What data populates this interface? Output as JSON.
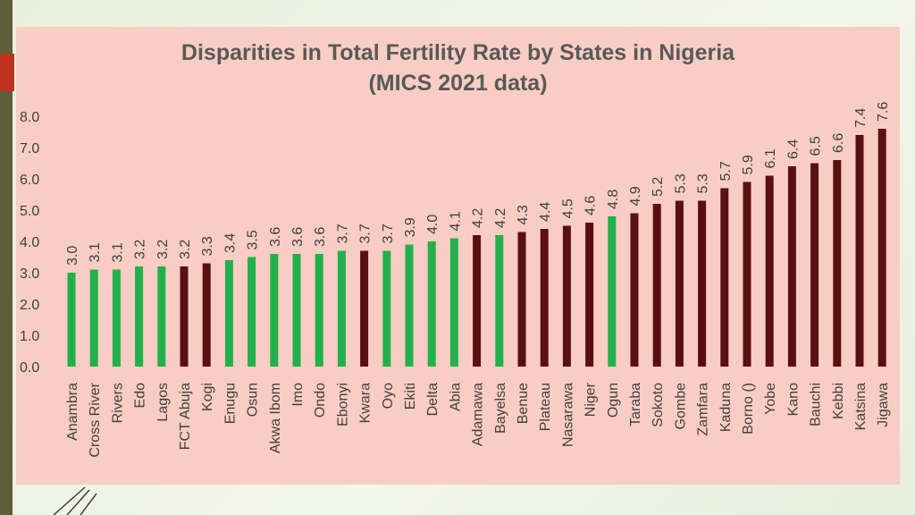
{
  "chart_data": {
    "type": "bar",
    "title": "Disparities in Total Fertility Rate by States in Nigeria",
    "subtitle": "(MICS 2021 data)",
    "xlabel": "",
    "ylabel": "",
    "ylim": [
      0,
      8
    ],
    "yticks": [
      "0.0",
      "1.0",
      "2.0",
      "3.0",
      "4.0",
      "5.0",
      "6.0",
      "7.0",
      "8.0"
    ],
    "grid": false,
    "categories": [
      "Anambra",
      "Cross River",
      "Rivers",
      "Edo",
      "Lagos",
      "FCT Abuja",
      "Kogi",
      "Enugu",
      "Osun",
      "Akwa Ibom",
      "Imo",
      "Ondo",
      "Ebonyi",
      "Kwara",
      "Oyo",
      "Ekiti",
      "Delta",
      "Abia",
      "Adamawa",
      "Bayelsa",
      "Benue",
      "Plateau",
      "Nasarawa",
      "Niger",
      "Ogun",
      "Taraba",
      "Sokoto",
      "Gombe",
      "Zamfara",
      "Kaduna",
      "Borno ()",
      "Yobe",
      "Kano",
      "Bauchi",
      "Kebbi",
      "Katsina",
      "Jigawa"
    ],
    "values": [
      3.0,
      3.1,
      3.1,
      3.2,
      3.2,
      3.2,
      3.3,
      3.4,
      3.5,
      3.6,
      3.6,
      3.6,
      3.7,
      3.7,
      3.7,
      3.9,
      4.0,
      4.1,
      4.2,
      4.2,
      4.3,
      4.4,
      4.5,
      4.6,
      4.8,
      4.9,
      5.2,
      5.3,
      5.3,
      5.7,
      5.9,
      6.1,
      6.4,
      6.5,
      6.6,
      7.4,
      7.6
    ],
    "value_labels": [
      "3.0",
      "3.1",
      "3.1",
      "3.2",
      "3.2",
      "3.2",
      "3.3",
      "3.4",
      "3.5",
      "3.6",
      "3.6",
      "3.6",
      "3.7",
      "3.7",
      "3.7",
      "3.9",
      "4.0",
      "4.1",
      "4.2",
      "4.2",
      "4.3",
      "4.4",
      "4.5",
      "4.6",
      "4.8",
      "4.9",
      "5.2",
      "5.3",
      "5.3",
      "5.7",
      "5.9",
      "6.1",
      "6.4",
      "6.5",
      "6.6",
      "7.4",
      "7.6"
    ],
    "region_groups": [
      "south",
      "south",
      "south",
      "south",
      "south",
      "north",
      "north",
      "south",
      "south",
      "south",
      "south",
      "south",
      "south",
      "north",
      "south",
      "south",
      "south",
      "south",
      "north",
      "south",
      "north",
      "north",
      "north",
      "north",
      "south",
      "north",
      "north",
      "north",
      "north",
      "north",
      "north",
      "north",
      "north",
      "north",
      "north",
      "north",
      "north"
    ],
    "colors": {
      "south": "#22b04b",
      "north": "#5a1010"
    }
  }
}
